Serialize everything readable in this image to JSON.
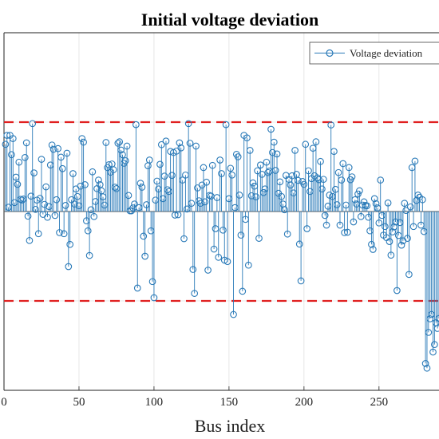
{
  "chart_data": {
    "type": "stem",
    "title": "Initial voltage deviation",
    "xlabel": "Bus index",
    "ylabel": "",
    "x_ticks": [
      "0",
      "50",
      "100",
      "150",
      "200",
      "250"
    ],
    "xlim": [
      0,
      290
    ],
    "ylim": [
      -0.05,
      0.05
    ],
    "grid": true,
    "legend": {
      "position": "top-right",
      "entries": [
        "Voltage deviation"
      ]
    },
    "colors": {
      "series": "#2a7ab8",
      "threshold": "#e02020",
      "axes": "#222222",
      "grid": "#e0e0e0",
      "baseline": "#555555"
    },
    "thresholds": [
      0.025,
      -0.025
    ],
    "series": [
      {
        "name": "Voltage deviation",
        "x": [
          1,
          2,
          3,
          4,
          5,
          6,
          7,
          8,
          9,
          10,
          11,
          12,
          13,
          14,
          15,
          16,
          17,
          18,
          19,
          20,
          21,
          22,
          23,
          24,
          25,
          26,
          27,
          28,
          29,
          30,
          31,
          32,
          33,
          34,
          35,
          36,
          37,
          38,
          39,
          40,
          41,
          42,
          43,
          44,
          45,
          46,
          47,
          48,
          49,
          50,
          51,
          52,
          53,
          54,
          55,
          56,
          57,
          58,
          59,
          60,
          61,
          62,
          63,
          64,
          65,
          66,
          67,
          68,
          69,
          70,
          71,
          72,
          73,
          74,
          75,
          76,
          77,
          78,
          79,
          80,
          81,
          82,
          83,
          84,
          85,
          86,
          87,
          88,
          89,
          90,
          91,
          92,
          93,
          94,
          95,
          96,
          97,
          98,
          99,
          100,
          101,
          102,
          103,
          104,
          105,
          106,
          107,
          108,
          109,
          110,
          111,
          112,
          113,
          114,
          115,
          116,
          117,
          118,
          119,
          120,
          121,
          122,
          123,
          124,
          125,
          126,
          127,
          128,
          129,
          130,
          131,
          132,
          133,
          134,
          135,
          136,
          137,
          138,
          139,
          140,
          141,
          142,
          143,
          144,
          145,
          146,
          147,
          148,
          149,
          150,
          151,
          152,
          153,
          154,
          155,
          156,
          157,
          158,
          159,
          160,
          161,
          162,
          163,
          164,
          165,
          166,
          167,
          168,
          169,
          170,
          171,
          172,
          173,
          174,
          175,
          176,
          177,
          178,
          179,
          180,
          181,
          182,
          183,
          184,
          185,
          186,
          187,
          188,
          189,
          190,
          191,
          192,
          193,
          194,
          195,
          196,
          197,
          198,
          199,
          200,
          201,
          202,
          203,
          204,
          205,
          206,
          207,
          208,
          209,
          210,
          211,
          212,
          213,
          214,
          215,
          216,
          217,
          218,
          219,
          220,
          221,
          222,
          223,
          224,
          225,
          226,
          227,
          228,
          229,
          230,
          231,
          232,
          233,
          234,
          235,
          236,
          237,
          238,
          239,
          240,
          241,
          242,
          243,
          244,
          245,
          246,
          247,
          248,
          249,
          250,
          251,
          252,
          253,
          254,
          255,
          256,
          257,
          258,
          259,
          260,
          261,
          262,
          263,
          264,
          265,
          266,
          267,
          268,
          269,
          270,
          271,
          272,
          273,
          274,
          275,
          276,
          277,
          278,
          279,
          280,
          281,
          282,
          283,
          284,
          285,
          286,
          287,
          288,
          289,
          290
        ],
        "y": [
          0.0188,
          0.0213,
          0.0012,
          0.0213,
          0.0159,
          0.0204,
          0.0025,
          0.0096,
          0.0076,
          0.0138,
          0.0034,
          0.0032,
          0.0035,
          0.0151,
          0.0192,
          -0.0013,
          -0.0081,
          0.0043,
          0.0246,
          0.0108,
          0.0006,
          0.0032,
          -0.0062,
          0.0037,
          0.0146,
          -0.0008,
          0.002,
          0.0069,
          -0.0016,
          0.0014,
          0.013,
          0.0186,
          0.0174,
          -0.0011,
          0.0033,
          0.0176,
          -0.0059,
          0.0152,
          0.012,
          -0.0062,
          0.0017,
          0.0163,
          -0.0154,
          -0.0092,
          0.0033,
          0.0106,
          0.0021,
          0.0063,
          0.0042,
          0.0016,
          0.0071,
          0.0204,
          0.0194,
          0.0075,
          -0.0026,
          -0.0054,
          -0.0123,
          0.0005,
          0.0111,
          -0.0014,
          0.0028,
          0.0064,
          0.0088,
          0.0075,
          0.0058,
          0.0041,
          0.0018,
          0.0193,
          0.0123,
          0.0131,
          0.011,
          0.0133,
          0.0117,
          0.0068,
          0.0064,
          0.0191,
          0.0195,
          0.0172,
          0.0159,
          0.0135,
          0.0142,
          0.0183,
          0.0045,
          0.0002,
          0.0002,
          0.001,
          0.0021,
          0.0243,
          -0.0214,
          0.0011,
          0.0079,
          0.0068,
          -0.0069,
          -0.0125,
          0.0019,
          0.0128,
          0.0144,
          -0.0054,
          -0.0196,
          -0.0241,
          0.0032,
          0.0085,
          0.0063,
          0.0132,
          0.0187,
          0.0036,
          0.0099,
          0.0197,
          0.0061,
          0.0056,
          0.0168,
          0.0101,
          0.0165,
          -0.001,
          0.0169,
          -0.0009,
          0.0192,
          0.0178,
          0.0088,
          -0.0076,
          0.0102,
          0.0007,
          0.0246,
          0.0191,
          0.0023,
          -0.0162,
          -0.0229,
          0.0183,
          0.0066,
          0.003,
          0.0023,
          0.0074,
          0.0123,
          0.0027,
          0.0082,
          -0.0164,
          0.0045,
          0.0043,
          0.0129,
          -0.0105,
          -0.0048,
          0.0039,
          -0.0128,
          0.0144,
          0.0106,
          -0.0052,
          -0.0136,
          0.0243,
          -0.014,
          0.0036,
          0.0121,
          0.0102,
          -0.0288,
          0.0011,
          0.016,
          0.0153,
          0.0046,
          -0.0066,
          -0.0223,
          0.0213,
          -0.0022,
          0.0206,
          -0.015,
          0.0171,
          0.0044,
          0.008,
          0.0071,
          0.0041,
          0.0114,
          -0.0075,
          0.013,
          0.0104,
          0.0053,
          0.0063,
          0.0138,
          0.0109,
          0.0113,
          0.023,
          0.0165,
          0.0194,
          0.0115,
          0.0161,
          0.0051,
          0.0083,
          0.0042,
          0.0021,
          0.0005,
          0.0101,
          -0.0063,
          0.009,
          0.0074,
          0.01,
          0.0052,
          0.0171,
          0.0104,
          0.0087,
          -0.0091,
          -0.0194,
          0.0084,
          0.0076,
          0.0188,
          -0.0048,
          0.0114,
          0.0056,
          0.0092,
          0.0177,
          0.01,
          0.0195,
          0.0094,
          0.0089,
          0.014,
          0.0063,
          0.009,
          -0.0011,
          -0.0038,
          0.0015,
          0.0046,
          0.0242,
          0.0042,
          0.0168,
          0.0062,
          0.0019,
          0.0109,
          -0.0038,
          0.0088,
          0.0134,
          -0.0059,
          0.0018,
          -0.0058,
          0.0123,
          0.0089,
          0.0097,
          -0.0029,
          0.0033,
          0.0021,
          0.0049,
          0.0058,
          -0.0014,
          0.0018,
          0.0027,
          0.0017,
          0.0016,
          -0.0016,
          -0.0054,
          -0.0092,
          -0.0106,
          0.0036,
          0.0022,
          0.001,
          -0.0032,
          0.0088,
          -0.0011,
          -0.0066,
          -0.0042,
          -0.0073,
          0.0024,
          -0.0084,
          -0.0122,
          -0.0057,
          -0.0043,
          -0.0029,
          -0.0221,
          -0.0067,
          -0.0031,
          -0.0094,
          -0.0082,
          0.0023,
          0.0003,
          -0.0075,
          -0.0176,
          0.0013,
          0.0123,
          -0.0042,
          0.0141,
          0.0031,
          0.0046,
          0.004,
          -0.0038,
          0.0033,
          -0.0056,
          -0.0425,
          -0.0438,
          -0.0338,
          -0.03,
          -0.0288,
          -0.0393,
          -0.0372,
          -0.0311,
          -0.0327,
          -0.0299
        ]
      }
    ]
  }
}
